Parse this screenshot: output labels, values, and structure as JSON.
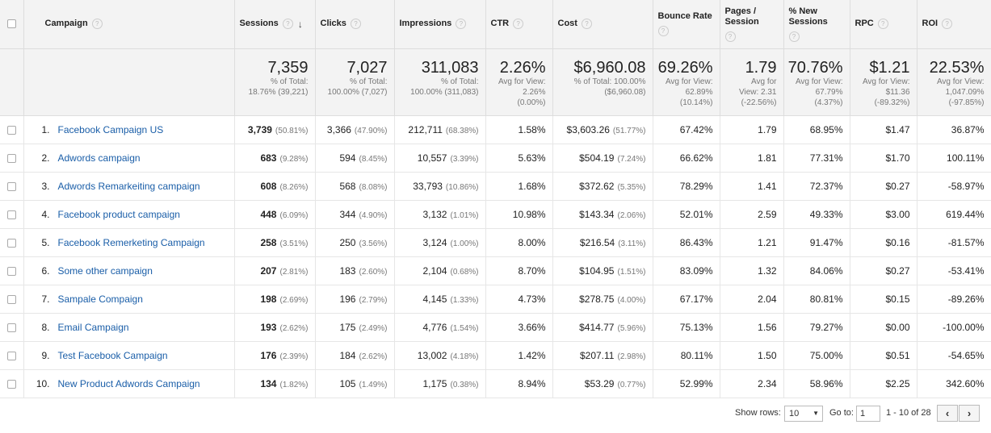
{
  "columns": {
    "campaign": "Campaign",
    "sessions": "Sessions",
    "clicks": "Clicks",
    "impressions": "Impressions",
    "ctr": "CTR",
    "cost": "Cost",
    "bounce_rate": "Bounce Rate",
    "pages_session": "Pages / Session",
    "pages_session_l1": "Pages /",
    "pages_session_l2": "Session",
    "new_sessions_l1": "% New",
    "new_sessions_l2": "Sessions",
    "rpc": "RPC",
    "roi": "ROI"
  },
  "help_icon": "?",
  "sort_icon": "↓",
  "totals": {
    "sessions": {
      "value": "7,359",
      "l1": "% of Total:",
      "l2": "18.76% (39,221)"
    },
    "clicks": {
      "value": "7,027",
      "l1": "% of Total:",
      "l2": "100.00% (7,027)"
    },
    "impressions": {
      "value": "311,083",
      "l1": "% of Total:",
      "l2": "100.00% (311,083)"
    },
    "ctr": {
      "value": "2.26%",
      "l1": "Avg for View:",
      "l2": "2.26%",
      "l3": "(0.00%)"
    },
    "cost": {
      "value": "$6,960.08",
      "l1": "% of Total: 100.00%",
      "l2": "($6,960.08)"
    },
    "bounce_rate": {
      "value": "69.26%",
      "l1": "Avg for View:",
      "l2": "62.89%",
      "l3": "(10.14%)"
    },
    "pages_session": {
      "value": "1.79",
      "l1": "Avg for",
      "l2": "View: 2.31",
      "l3": "(-22.56%)"
    },
    "new_sessions": {
      "value": "70.76%",
      "l1": "Avg for View:",
      "l2": "67.79%",
      "l3": "(4.37%)"
    },
    "rpc": {
      "value": "$1.21",
      "l1": "Avg for View:",
      "l2": "$11.36",
      "l3": "(-89.32%)"
    },
    "roi": {
      "value": "22.53%",
      "l1": "Avg for View:",
      "l2": "1,047.09%",
      "l3": "(-97.85%)"
    }
  },
  "rows": [
    {
      "idx": "1.",
      "name": "Facebook Campaign US",
      "sessions": "3,739",
      "sessions_pct": "(50.81%)",
      "clicks": "3,366",
      "clicks_pct": "(47.90%)",
      "impressions": "212,711",
      "impressions_pct": "(68.38%)",
      "ctr": "1.58%",
      "cost": "$3,603.26",
      "cost_pct": "(51.77%)",
      "bounce": "67.42%",
      "pages": "1.79",
      "new": "68.95%",
      "rpc": "$1.47",
      "roi": "36.87%"
    },
    {
      "idx": "2.",
      "name": "Adwords campaign",
      "sessions": "683",
      "sessions_pct": "(9.28%)",
      "clicks": "594",
      "clicks_pct": "(8.45%)",
      "impressions": "10,557",
      "impressions_pct": "(3.39%)",
      "ctr": "5.63%",
      "cost": "$504.19",
      "cost_pct": "(7.24%)",
      "bounce": "66.62%",
      "pages": "1.81",
      "new": "77.31%",
      "rpc": "$1.70",
      "roi": "100.11%"
    },
    {
      "idx": "3.",
      "name": "Adwords Remarkeiting campaign",
      "sessions": "608",
      "sessions_pct": "(8.26%)",
      "clicks": "568",
      "clicks_pct": "(8.08%)",
      "impressions": "33,793",
      "impressions_pct": "(10.86%)",
      "ctr": "1.68%",
      "cost": "$372.62",
      "cost_pct": "(5.35%)",
      "bounce": "78.29%",
      "pages": "1.41",
      "new": "72.37%",
      "rpc": "$0.27",
      "roi": "-58.97%"
    },
    {
      "idx": "4.",
      "name": "Facebook product campaign",
      "sessions": "448",
      "sessions_pct": "(6.09%)",
      "clicks": "344",
      "clicks_pct": "(4.90%)",
      "impressions": "3,132",
      "impressions_pct": "(1.01%)",
      "ctr": "10.98%",
      "cost": "$143.34",
      "cost_pct": "(2.06%)",
      "bounce": "52.01%",
      "pages": "2.59",
      "new": "49.33%",
      "rpc": "$3.00",
      "roi": "619.44%"
    },
    {
      "idx": "5.",
      "name": "Facebook Remerketing Campaign",
      "sessions": "258",
      "sessions_pct": "(3.51%)",
      "clicks": "250",
      "clicks_pct": "(3.56%)",
      "impressions": "3,124",
      "impressions_pct": "(1.00%)",
      "ctr": "8.00%",
      "cost": "$216.54",
      "cost_pct": "(3.11%)",
      "bounce": "86.43%",
      "pages": "1.21",
      "new": "91.47%",
      "rpc": "$0.16",
      "roi": "-81.57%"
    },
    {
      "idx": "6.",
      "name": "Some other campaign",
      "sessions": "207",
      "sessions_pct": "(2.81%)",
      "clicks": "183",
      "clicks_pct": "(2.60%)",
      "impressions": "2,104",
      "impressions_pct": "(0.68%)",
      "ctr": "8.70%",
      "cost": "$104.95",
      "cost_pct": "(1.51%)",
      "bounce": "83.09%",
      "pages": "1.32",
      "new": "84.06%",
      "rpc": "$0.27",
      "roi": "-53.41%"
    },
    {
      "idx": "7.",
      "name": "Sampale Compaign",
      "sessions": "198",
      "sessions_pct": "(2.69%)",
      "clicks": "196",
      "clicks_pct": "(2.79%)",
      "impressions": "4,145",
      "impressions_pct": "(1.33%)",
      "ctr": "4.73%",
      "cost": "$278.75",
      "cost_pct": "(4.00%)",
      "bounce": "67.17%",
      "pages": "2.04",
      "new": "80.81%",
      "rpc": "$0.15",
      "roi": "-89.26%"
    },
    {
      "idx": "8.",
      "name": "Email Campaign",
      "sessions": "193",
      "sessions_pct": "(2.62%)",
      "clicks": "175",
      "clicks_pct": "(2.49%)",
      "impressions": "4,776",
      "impressions_pct": "(1.54%)",
      "ctr": "3.66%",
      "cost": "$414.77",
      "cost_pct": "(5.96%)",
      "bounce": "75.13%",
      "pages": "1.56",
      "new": "79.27%",
      "rpc": "$0.00",
      "roi": "-100.00%"
    },
    {
      "idx": "9.",
      "name": "Test Facebook Campaign",
      "sessions": "176",
      "sessions_pct": "(2.39%)",
      "clicks": "184",
      "clicks_pct": "(2.62%)",
      "impressions": "13,002",
      "impressions_pct": "(4.18%)",
      "ctr": "1.42%",
      "cost": "$207.11",
      "cost_pct": "(2.98%)",
      "bounce": "80.11%",
      "pages": "1.50",
      "new": "75.00%",
      "rpc": "$0.51",
      "roi": "-54.65%"
    },
    {
      "idx": "10.",
      "name": "New Product Adwords Campaign",
      "sessions": "134",
      "sessions_pct": "(1.82%)",
      "clicks": "105",
      "clicks_pct": "(1.49%)",
      "impressions": "1,175",
      "impressions_pct": "(0.38%)",
      "ctr": "8.94%",
      "cost": "$53.29",
      "cost_pct": "(0.77%)",
      "bounce": "52.99%",
      "pages": "2.34",
      "new": "58.96%",
      "rpc": "$2.25",
      "roi": "342.60%"
    }
  ],
  "footer": {
    "show_rows_label": "Show rows:",
    "show_rows_value": "10",
    "goto_label": "Go to:",
    "goto_value": "1",
    "range": "1 - 10 of 28",
    "prev": "‹",
    "next": "›"
  }
}
